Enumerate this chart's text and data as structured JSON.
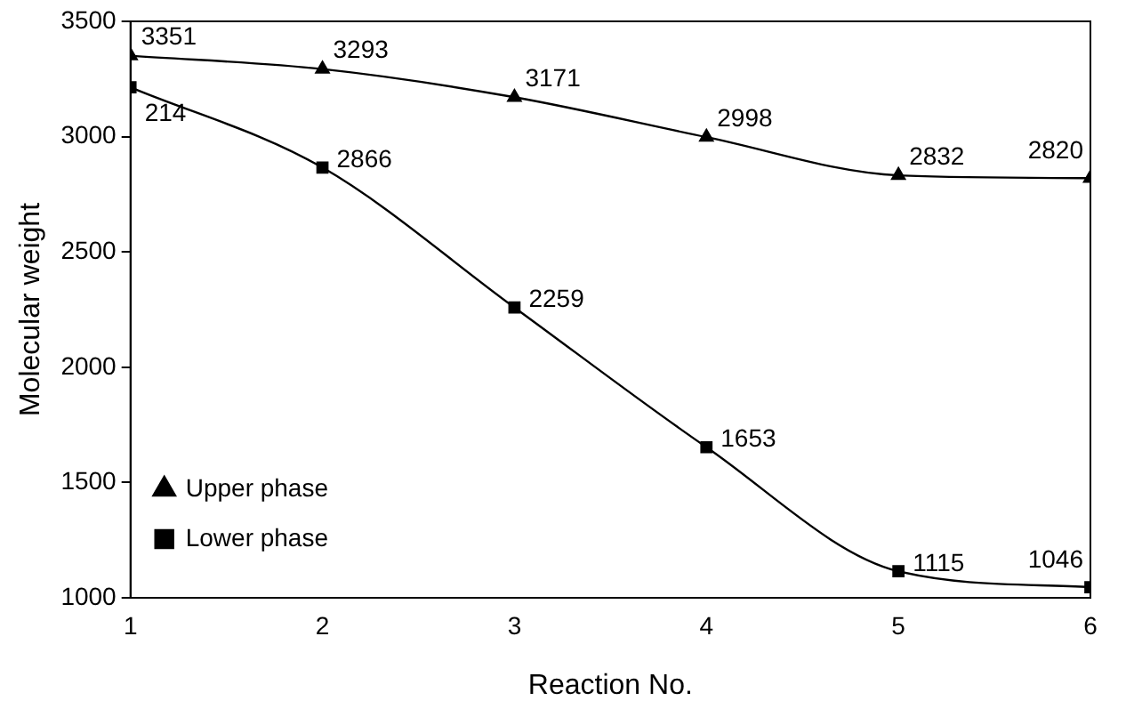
{
  "chart_data": {
    "type": "line",
    "xlabel": "Reaction No.",
    "ylabel": "Molecular weight",
    "x": [
      1,
      2,
      3,
      4,
      5,
      6
    ],
    "xlim": [
      1,
      6
    ],
    "xticks": [
      1,
      2,
      3,
      4,
      5,
      6
    ],
    "ylim": [
      1000,
      3500
    ],
    "yticks": [
      1000,
      1500,
      2000,
      2500,
      3000,
      3500
    ],
    "annotations": [
      {
        "text": "214",
        "x": 1,
        "y": 3214
      }
    ],
    "grid": false,
    "legend": "bottom left",
    "line_style": "solid",
    "series": [
      {
        "name": "Upper phase",
        "color": "#000000",
        "marker": "triangle",
        "values": [
          3351,
          3293,
          3171,
          2998,
          2832,
          2820
        ],
        "value_labels": [
          "3351",
          "3293",
          "3171",
          "2998",
          "2832",
          "2820"
        ]
      },
      {
        "name": "Lower phase",
        "color": "#000000",
        "marker": "square",
        "values": [
          3214,
          2866,
          2259,
          1653,
          1115,
          1046
        ],
        "value_labels": [
          null,
          "2866",
          "2259",
          "1653",
          "1115",
          "1046"
        ]
      }
    ]
  }
}
